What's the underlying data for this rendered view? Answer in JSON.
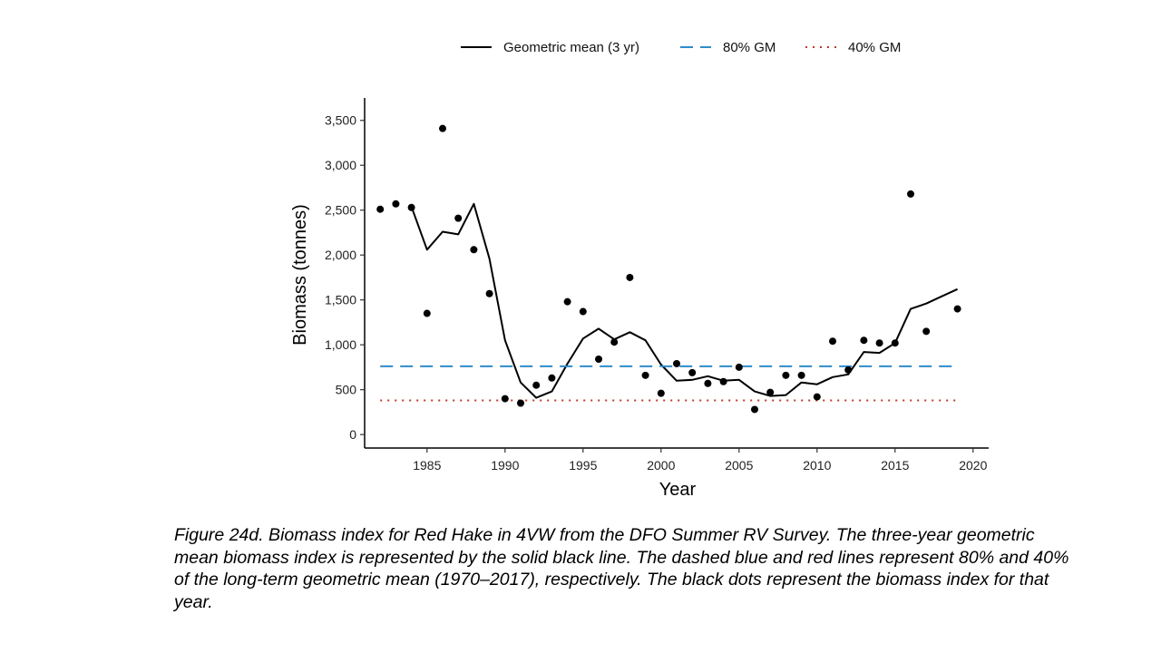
{
  "chart_data": {
    "type": "line",
    "xlabel": "Year",
    "ylabel": "Biomass (tonnes)",
    "xlim": [
      1981,
      2021
    ],
    "ylim": [
      -150,
      3750
    ],
    "xticks": [
      1985,
      1990,
      1995,
      2000,
      2005,
      2010,
      2015,
      2020
    ],
    "xtick_labels": [
      "1985",
      "1990",
      "1995",
      "2000",
      "2005",
      "2010",
      "2015",
      "2020"
    ],
    "yticks": [
      0,
      500,
      1000,
      1500,
      2000,
      2500,
      3000,
      3500
    ],
    "ytick_labels": [
      "0",
      "500",
      "1,000",
      "1,500",
      "2,000",
      "2,500",
      "3,000",
      "3,500"
    ],
    "legend": {
      "placement": "top",
      "entries": [
        "Geometric mean (3 yr)",
        "80% GM",
        "40% GM"
      ]
    },
    "series": [
      {
        "name": "Geometric mean (3 yr)",
        "style": "solid",
        "color": "#000000",
        "x": [
          1984,
          1985,
          1986,
          1987,
          1988,
          1989,
          1990,
          1991,
          1992,
          1993,
          1994,
          1995,
          1996,
          1997,
          1998,
          1999,
          2000,
          2001,
          2002,
          2003,
          2004,
          2005,
          2006,
          2007,
          2008,
          2009,
          2010,
          2011,
          2012,
          2013,
          2014,
          2015,
          2016,
          2017,
          2018,
          2019
        ],
        "y": [
          2540,
          2060,
          2260,
          2230,
          2570,
          1960,
          1050,
          580,
          410,
          480,
          790,
          1070,
          1180,
          1060,
          1140,
          1050,
          780,
          600,
          610,
          650,
          600,
          610,
          480,
          430,
          440,
          580,
          560,
          640,
          670,
          920,
          910,
          1020,
          1400,
          1460,
          1540,
          1620
        ]
      },
      {
        "name": "80% GM",
        "style": "dashed",
        "color": "#2e8bc9",
        "x": [
          1982,
          2019
        ],
        "y": [
          760,
          760
        ]
      },
      {
        "name": "40% GM",
        "style": "dotted",
        "color": "#c0392b",
        "x": [
          1982,
          2019
        ],
        "y": [
          380,
          380
        ]
      },
      {
        "name": "Biomass index",
        "style": "points",
        "color": "#000000",
        "x": [
          1982,
          1983,
          1984,
          1985,
          1986,
          1987,
          1988,
          1989,
          1990,
          1991,
          1992,
          1993,
          1994,
          1995,
          1996,
          1997,
          1998,
          1999,
          2000,
          2001,
          2002,
          2003,
          2004,
          2005,
          2006,
          2007,
          2008,
          2009,
          2010,
          2011,
          2012,
          2013,
          2014,
          2015,
          2016,
          2017,
          2019
        ],
        "y": [
          2510,
          2570,
          2530,
          1350,
          3410,
          2410,
          2060,
          1570,
          400,
          350,
          550,
          630,
          1480,
          1370,
          840,
          1030,
          1750,
          660,
          460,
          790,
          690,
          570,
          590,
          750,
          280,
          470,
          660,
          660,
          420,
          1040,
          720,
          1050,
          1020,
          1020,
          2680,
          1150,
          1400
        ]
      }
    ]
  },
  "caption": "Figure 24d. Biomass index for Red Hake in 4VW from the DFO Summer RV Survey. The three-year geometric mean biomass index is represented by the solid black line. The dashed blue and red lines represent 80% and 40% of the long-term geometric mean (1970–2017), respectively. The black dots represent the biomass index for that year."
}
